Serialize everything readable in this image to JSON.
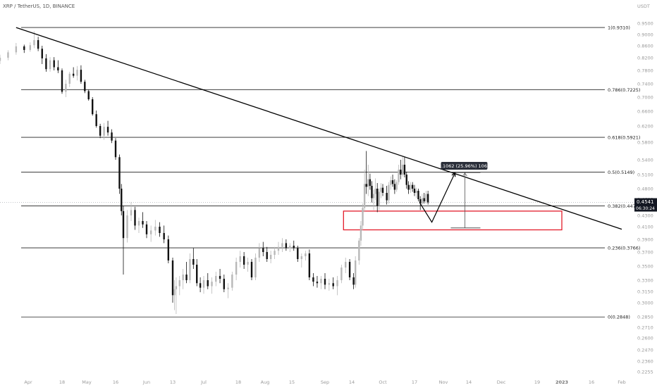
{
  "header": {
    "symbol": "XRP / TetherUS, 1D, BINANCE",
    "unit": "USDT"
  },
  "price_tag": {
    "price": "0.4541",
    "countdown": "06:30:24",
    "color": "#131722"
  },
  "measure_label": "0.1062 (25.96%) 1062",
  "colors": {
    "up": "#b8b8b8",
    "down": "#111111",
    "fib_line": "#222222",
    "trendline": "#000000",
    "zone": "#e31c2a"
  },
  "chart_data": {
    "type": "candlestick",
    "title": "",
    "xlabel": "",
    "ylabel": "",
    "ylim": [
      0.2255,
      0.97
    ],
    "yticks": [
      "0.9500",
      "0.9000",
      "0.8600",
      "0.8200",
      "0.7800",
      "0.7400",
      "0.7000",
      "0.6600",
      "0.6200",
      "0.5800",
      "0.5400",
      "0.5100",
      "0.4800",
      "0.4600",
      "0.4300",
      "0.4100",
      "0.3900",
      "0.3700",
      "0.3500",
      "0.3300",
      "0.3150",
      "0.3000",
      "0.2850",
      "0.2710",
      "0.2600",
      "0.2470",
      "0.2360",
      "0.2255"
    ],
    "xticks": [
      {
        "label": "Apr",
        "date": "2022-04-01"
      },
      {
        "label": "18",
        "date": "2022-04-18"
      },
      {
        "label": "May",
        "date": "2022-05-01"
      },
      {
        "label": "16",
        "date": "2022-05-16"
      },
      {
        "label": "Jun",
        "date": "2022-06-01"
      },
      {
        "label": "13",
        "date": "2022-06-13"
      },
      {
        "label": "Jul",
        "date": "2022-07-01"
      },
      {
        "label": "18",
        "date": "2022-07-18"
      },
      {
        "label": "Aug",
        "date": "2022-08-01"
      },
      {
        "label": "15",
        "date": "2022-08-15"
      },
      {
        "label": "Sep",
        "date": "2022-09-01"
      },
      {
        "label": "14",
        "date": "2022-09-14"
      },
      {
        "label": "Oct",
        "date": "2022-10-01"
      },
      {
        "label": "17",
        "date": "2022-10-17"
      },
      {
        "label": "Nov",
        "date": "2022-11-01"
      },
      {
        "label": "14",
        "date": "2022-11-14"
      },
      {
        "label": "Dec",
        "date": "2022-12-01"
      },
      {
        "label": "19",
        "date": "2022-12-19"
      },
      {
        "label": "2023",
        "date": "2023-01-01"
      },
      {
        "label": "16",
        "date": "2023-01-16"
      },
      {
        "label": "Feb",
        "date": "2023-02-01"
      }
    ],
    "fib_levels": [
      {
        "label": "1(0.9310)",
        "value": 0.931
      },
      {
        "label": "0.786(0.7225)",
        "value": 0.7225
      },
      {
        "label": "0.618(0.5921)",
        "value": 0.5921
      },
      {
        "label": "0.5(0.5149)",
        "value": 0.5149
      },
      {
        "label": "0.382(0.4477)",
        "value": 0.4477
      },
      {
        "label": "0.236(0.3766)",
        "value": 0.3766
      },
      {
        "label": "0(0.2848)",
        "value": 0.2848
      }
    ],
    "trendline": [
      {
        "date": "2022-03-29",
        "value": 0.931
      },
      {
        "date": "2023-02-01",
        "value": 0.406
      }
    ],
    "zone": {
      "from": "2022-09-10",
      "to": "2023-01-01",
      "top": 0.438,
      "bottom": 0.405
    },
    "projection": [
      {
        "date": "2022-10-20",
        "value": 0.452
      },
      {
        "date": "2022-10-26",
        "value": 0.418
      },
      {
        "date": "2022-11-07",
        "value": 0.514
      }
    ],
    "measure": {
      "date": "2022-11-12",
      "from": 0.408,
      "to": 0.5142,
      "change": 0.1062
    },
    "last_price": 0.4541,
    "candles": [
      {
        "d": "2022-03-25",
        "o": 0.81,
        "h": 0.83,
        "l": 0.8,
        "c": 0.82
      },
      {
        "d": "2022-03-27",
        "o": 0.82,
        "h": 0.845,
        "l": 0.812,
        "c": 0.838
      },
      {
        "d": "2022-03-29",
        "o": 0.838,
        "h": 0.87,
        "l": 0.83,
        "c": 0.858
      },
      {
        "d": "2022-03-31",
        "o": 0.858,
        "h": 0.864,
        "l": 0.836,
        "c": 0.846
      },
      {
        "d": "2022-04-02",
        "o": 0.846,
        "h": 0.872,
        "l": 0.84,
        "c": 0.862
      },
      {
        "d": "2022-04-04",
        "o": 0.862,
        "h": 0.914,
        "l": 0.852,
        "c": 0.88
      },
      {
        "d": "2022-04-06",
        "o": 0.88,
        "h": 0.892,
        "l": 0.842,
        "c": 0.85
      },
      {
        "d": "2022-04-08",
        "o": 0.85,
        "h": 0.86,
        "l": 0.8,
        "c": 0.818
      },
      {
        "d": "2022-04-10",
        "o": 0.818,
        "h": 0.832,
        "l": 0.776,
        "c": 0.784
      },
      {
        "d": "2022-04-12",
        "o": 0.784,
        "h": 0.822,
        "l": 0.776,
        "c": 0.812
      },
      {
        "d": "2022-04-14",
        "o": 0.812,
        "h": 0.822,
        "l": 0.78,
        "c": 0.79
      },
      {
        "d": "2022-04-16",
        "o": 0.79,
        "h": 0.812,
        "l": 0.772,
        "c": 0.78
      },
      {
        "d": "2022-04-18",
        "o": 0.78,
        "h": 0.786,
        "l": 0.71,
        "c": 0.716
      },
      {
        "d": "2022-04-20",
        "o": 0.716,
        "h": 0.752,
        "l": 0.7,
        "c": 0.74
      },
      {
        "d": "2022-04-22",
        "o": 0.74,
        "h": 0.776,
        "l": 0.73,
        "c": 0.77
      },
      {
        "d": "2022-04-24",
        "o": 0.77,
        "h": 0.79,
        "l": 0.758,
        "c": 0.764
      },
      {
        "d": "2022-04-26",
        "o": 0.764,
        "h": 0.794,
        "l": 0.75,
        "c": 0.782
      },
      {
        "d": "2022-04-28",
        "o": 0.782,
        "h": 0.796,
        "l": 0.74,
        "c": 0.746
      },
      {
        "d": "2022-04-30",
        "o": 0.746,
        "h": 0.752,
        "l": 0.712,
        "c": 0.718
      },
      {
        "d": "2022-05-02",
        "o": 0.718,
        "h": 0.722,
        "l": 0.69,
        "c": 0.694
      },
      {
        "d": "2022-05-04",
        "o": 0.694,
        "h": 0.7,
        "l": 0.648,
        "c": 0.652
      },
      {
        "d": "2022-05-06",
        "o": 0.652,
        "h": 0.662,
        "l": 0.616,
        "c": 0.62
      },
      {
        "d": "2022-05-08",
        "o": 0.62,
        "h": 0.626,
        "l": 0.59,
        "c": 0.596
      },
      {
        "d": "2022-05-10",
        "o": 0.596,
        "h": 0.628,
        "l": 0.586,
        "c": 0.618
      },
      {
        "d": "2022-05-12",
        "o": 0.618,
        "h": 0.634,
        "l": 0.596,
        "c": 0.604
      },
      {
        "d": "2022-05-14",
        "o": 0.604,
        "h": 0.612,
        "l": 0.578,
        "c": 0.584
      },
      {
        "d": "2022-05-16",
        "o": 0.584,
        "h": 0.59,
        "l": 0.54,
        "c": 0.546
      },
      {
        "d": "2022-05-18",
        "o": 0.546,
        "h": 0.552,
        "l": 0.47,
        "c": 0.48
      },
      {
        "d": "2022-05-19",
        "o": 0.48,
        "h": 0.49,
        "l": 0.43,
        "c": 0.438
      },
      {
        "d": "2022-05-20",
        "o": 0.438,
        "h": 0.448,
        "l": 0.338,
        "c": 0.392
      },
      {
        "d": "2022-05-22",
        "o": 0.392,
        "h": 0.44,
        "l": 0.385,
        "c": 0.43
      },
      {
        "d": "2022-05-24",
        "o": 0.43,
        "h": 0.455,
        "l": 0.42,
        "c": 0.44
      },
      {
        "d": "2022-05-26",
        "o": 0.44,
        "h": 0.446,
        "l": 0.405,
        "c": 0.412
      },
      {
        "d": "2022-05-28",
        "o": 0.412,
        "h": 0.426,
        "l": 0.4,
        "c": 0.42
      },
      {
        "d": "2022-05-30",
        "o": 0.42,
        "h": 0.436,
        "l": 0.408,
        "c": 0.414
      },
      {
        "d": "2022-06-01",
        "o": 0.414,
        "h": 0.42,
        "l": 0.392,
        "c": 0.398
      },
      {
        "d": "2022-06-03",
        "o": 0.398,
        "h": 0.412,
        "l": 0.386,
        "c": 0.404
      },
      {
        "d": "2022-06-05",
        "o": 0.404,
        "h": 0.422,
        "l": 0.396,
        "c": 0.41
      },
      {
        "d": "2022-06-07",
        "o": 0.41,
        "h": 0.418,
        "l": 0.394,
        "c": 0.4
      },
      {
        "d": "2022-06-09",
        "o": 0.4,
        "h": 0.412,
        "l": 0.384,
        "c": 0.39
      },
      {
        "d": "2022-06-11",
        "o": 0.39,
        "h": 0.396,
        "l": 0.354,
        "c": 0.358
      },
      {
        "d": "2022-06-13",
        "o": 0.358,
        "h": 0.362,
        "l": 0.3,
        "c": 0.31
      },
      {
        "d": "2022-06-14",
        "o": 0.31,
        "h": 0.33,
        "l": 0.292,
        "c": 0.318
      },
      {
        "d": "2022-06-15",
        "o": 0.318,
        "h": 0.334,
        "l": 0.288,
        "c": 0.322
      },
      {
        "d": "2022-06-17",
        "o": 0.322,
        "h": 0.336,
        "l": 0.31,
        "c": 0.33
      },
      {
        "d": "2022-06-19",
        "o": 0.33,
        "h": 0.346,
        "l": 0.318,
        "c": 0.338
      },
      {
        "d": "2022-06-21",
        "o": 0.338,
        "h": 0.356,
        "l": 0.326,
        "c": 0.33
      },
      {
        "d": "2022-06-23",
        "o": 0.33,
        "h": 0.368,
        "l": 0.326,
        "c": 0.36
      },
      {
        "d": "2022-06-25",
        "o": 0.36,
        "h": 0.376,
        "l": 0.346,
        "c": 0.352
      },
      {
        "d": "2022-06-27",
        "o": 0.352,
        "h": 0.36,
        "l": 0.322,
        "c": 0.326
      },
      {
        "d": "2022-06-29",
        "o": 0.326,
        "h": 0.334,
        "l": 0.314,
        "c": 0.32
      },
      {
        "d": "2022-07-01",
        "o": 0.32,
        "h": 0.336,
        "l": 0.312,
        "c": 0.33
      },
      {
        "d": "2022-07-03",
        "o": 0.33,
        "h": 0.34,
        "l": 0.318,
        "c": 0.322
      },
      {
        "d": "2022-07-05",
        "o": 0.322,
        "h": 0.334,
        "l": 0.312,
        "c": 0.328
      },
      {
        "d": "2022-07-07",
        "o": 0.328,
        "h": 0.342,
        "l": 0.322,
        "c": 0.336
      },
      {
        "d": "2022-07-09",
        "o": 0.336,
        "h": 0.346,
        "l": 0.326,
        "c": 0.332
      },
      {
        "d": "2022-07-11",
        "o": 0.332,
        "h": 0.338,
        "l": 0.314,
        "c": 0.318
      },
      {
        "d": "2022-07-13",
        "o": 0.318,
        "h": 0.326,
        "l": 0.306,
        "c": 0.32
      },
      {
        "d": "2022-07-15",
        "o": 0.32,
        "h": 0.342,
        "l": 0.316,
        "c": 0.338
      },
      {
        "d": "2022-07-17",
        "o": 0.338,
        "h": 0.362,
        "l": 0.33,
        "c": 0.356
      },
      {
        "d": "2022-07-19",
        "o": 0.356,
        "h": 0.372,
        "l": 0.348,
        "c": 0.364
      },
      {
        "d": "2022-07-21",
        "o": 0.364,
        "h": 0.37,
        "l": 0.346,
        "c": 0.352
      },
      {
        "d": "2022-07-23",
        "o": 0.352,
        "h": 0.362,
        "l": 0.342,
        "c": 0.356
      },
      {
        "d": "2022-07-25",
        "o": 0.356,
        "h": 0.36,
        "l": 0.33,
        "c": 0.334
      },
      {
        "d": "2022-07-27",
        "o": 0.334,
        "h": 0.368,
        "l": 0.33,
        "c": 0.362
      },
      {
        "d": "2022-07-29",
        "o": 0.362,
        "h": 0.384,
        "l": 0.356,
        "c": 0.376
      },
      {
        "d": "2022-07-31",
        "o": 0.376,
        "h": 0.386,
        "l": 0.364,
        "c": 0.37
      },
      {
        "d": "2022-08-02",
        "o": 0.37,
        "h": 0.378,
        "l": 0.356,
        "c": 0.36
      },
      {
        "d": "2022-08-04",
        "o": 0.36,
        "h": 0.372,
        "l": 0.354,
        "c": 0.366
      },
      {
        "d": "2022-08-06",
        "o": 0.366,
        "h": 0.378,
        "l": 0.36,
        "c": 0.372
      },
      {
        "d": "2022-08-08",
        "o": 0.372,
        "h": 0.386,
        "l": 0.366,
        "c": 0.378
      },
      {
        "d": "2022-08-10",
        "o": 0.378,
        "h": 0.392,
        "l": 0.37,
        "c": 0.384
      },
      {
        "d": "2022-08-12",
        "o": 0.384,
        "h": 0.39,
        "l": 0.372,
        "c": 0.376
      },
      {
        "d": "2022-08-14",
        "o": 0.376,
        "h": 0.384,
        "l": 0.37,
        "c": 0.38
      },
      {
        "d": "2022-08-16",
        "o": 0.38,
        "h": 0.388,
        "l": 0.372,
        "c": 0.376
      },
      {
        "d": "2022-08-18",
        "o": 0.376,
        "h": 0.38,
        "l": 0.356,
        "c": 0.36
      },
      {
        "d": "2022-08-20",
        "o": 0.36,
        "h": 0.368,
        "l": 0.348,
        "c": 0.364
      },
      {
        "d": "2022-08-22",
        "o": 0.364,
        "h": 0.372,
        "l": 0.358,
        "c": 0.368
      },
      {
        "d": "2022-08-24",
        "o": 0.368,
        "h": 0.374,
        "l": 0.33,
        "c": 0.334
      },
      {
        "d": "2022-08-26",
        "o": 0.334,
        "h": 0.34,
        "l": 0.322,
        "c": 0.328
      },
      {
        "d": "2022-08-28",
        "o": 0.328,
        "h": 0.336,
        "l": 0.32,
        "c": 0.326
      },
      {
        "d": "2022-08-30",
        "o": 0.326,
        "h": 0.336,
        "l": 0.318,
        "c": 0.332
      },
      {
        "d": "2022-09-01",
        "o": 0.332,
        "h": 0.34,
        "l": 0.318,
        "c": 0.324
      },
      {
        "d": "2022-09-03",
        "o": 0.324,
        "h": 0.332,
        "l": 0.316,
        "c": 0.326
      },
      {
        "d": "2022-09-05",
        "o": 0.326,
        "h": 0.334,
        "l": 0.318,
        "c": 0.322
      },
      {
        "d": "2022-09-07",
        "o": 0.322,
        "h": 0.336,
        "l": 0.31,
        "c": 0.33
      },
      {
        "d": "2022-09-09",
        "o": 0.33,
        "h": 0.352,
        "l": 0.326,
        "c": 0.348
      },
      {
        "d": "2022-09-11",
        "o": 0.348,
        "h": 0.362,
        "l": 0.34,
        "c": 0.356
      },
      {
        "d": "2022-09-13",
        "o": 0.356,
        "h": 0.36,
        "l": 0.33,
        "c": 0.334
      },
      {
        "d": "2022-09-15",
        "o": 0.334,
        "h": 0.34,
        "l": 0.318,
        "c": 0.324
      },
      {
        "d": "2022-09-16",
        "o": 0.324,
        "h": 0.364,
        "l": 0.32,
        "c": 0.358
      },
      {
        "d": "2022-09-18",
        "o": 0.358,
        "h": 0.392,
        "l": 0.352,
        "c": 0.388
      },
      {
        "d": "2022-09-19",
        "o": 0.388,
        "h": 0.42,
        "l": 0.38,
        "c": 0.412
      },
      {
        "d": "2022-09-20",
        "o": 0.412,
        "h": 0.452,
        "l": 0.404,
        "c": 0.444
      },
      {
        "d": "2022-09-21",
        "o": 0.444,
        "h": 0.52,
        "l": 0.436,
        "c": 0.49
      },
      {
        "d": "2022-09-22",
        "o": 0.49,
        "h": 0.56,
        "l": 0.47,
        "c": 0.484
      },
      {
        "d": "2022-09-23",
        "o": 0.484,
        "h": 0.53,
        "l": 0.466,
        "c": 0.5
      },
      {
        "d": "2022-09-24",
        "o": 0.5,
        "h": 0.512,
        "l": 0.478,
        "c": 0.486
      },
      {
        "d": "2022-09-25",
        "o": 0.486,
        "h": 0.496,
        "l": 0.454,
        "c": 0.462
      },
      {
        "d": "2022-09-26",
        "o": 0.462,
        "h": 0.478,
        "l": 0.44,
        "c": 0.47
      },
      {
        "d": "2022-09-27",
        "o": 0.47,
        "h": 0.502,
        "l": 0.458,
        "c": 0.48
      },
      {
        "d": "2022-09-28",
        "o": 0.48,
        "h": 0.492,
        "l": 0.436,
        "c": 0.448
      },
      {
        "d": "2022-09-29",
        "o": 0.448,
        "h": 0.48,
        "l": 0.44,
        "c": 0.474
      },
      {
        "d": "2022-09-30",
        "o": 0.474,
        "h": 0.492,
        "l": 0.462,
        "c": 0.482
      },
      {
        "d": "2022-10-01",
        "o": 0.482,
        "h": 0.49,
        "l": 0.466,
        "c": 0.472
      },
      {
        "d": "2022-10-03",
        "o": 0.472,
        "h": 0.486,
        "l": 0.45,
        "c": 0.458
      },
      {
        "d": "2022-10-04",
        "o": 0.458,
        "h": 0.494,
        "l": 0.452,
        "c": 0.488
      },
      {
        "d": "2022-10-05",
        "o": 0.488,
        "h": 0.506,
        "l": 0.478,
        "c": 0.498
      },
      {
        "d": "2022-10-06",
        "o": 0.498,
        "h": 0.51,
        "l": 0.484,
        "c": 0.49
      },
      {
        "d": "2022-10-07",
        "o": 0.49,
        "h": 0.5,
        "l": 0.47,
        "c": 0.478
      },
      {
        "d": "2022-10-08",
        "o": 0.478,
        "h": 0.498,
        "l": 0.474,
        "c": 0.494
      },
      {
        "d": "2022-10-09",
        "o": 0.494,
        "h": 0.53,
        "l": 0.488,
        "c": 0.52
      },
      {
        "d": "2022-10-10",
        "o": 0.52,
        "h": 0.54,
        "l": 0.5,
        "c": 0.51
      },
      {
        "d": "2022-10-11",
        "o": 0.51,
        "h": 0.548,
        "l": 0.506,
        "c": 0.53
      },
      {
        "d": "2022-10-12",
        "o": 0.53,
        "h": 0.546,
        "l": 0.504,
        "c": 0.51
      },
      {
        "d": "2022-10-13",
        "o": 0.51,
        "h": 0.516,
        "l": 0.48,
        "c": 0.488
      },
      {
        "d": "2022-10-14",
        "o": 0.488,
        "h": 0.496,
        "l": 0.47,
        "c": 0.478
      },
      {
        "d": "2022-10-15",
        "o": 0.478,
        "h": 0.494,
        "l": 0.472,
        "c": 0.488
      },
      {
        "d": "2022-10-16",
        "o": 0.488,
        "h": 0.494,
        "l": 0.474,
        "c": 0.48
      },
      {
        "d": "2022-10-17",
        "o": 0.48,
        "h": 0.488,
        "l": 0.466,
        "c": 0.472
      },
      {
        "d": "2022-10-18",
        "o": 0.472,
        "h": 0.482,
        "l": 0.462,
        "c": 0.476
      },
      {
        "d": "2022-10-19",
        "o": 0.476,
        "h": 0.48,
        "l": 0.456,
        "c": 0.46
      },
      {
        "d": "2022-10-20",
        "o": 0.46,
        "h": 0.466,
        "l": 0.44,
        "c": 0.452
      },
      {
        "d": "2022-10-21",
        "o": 0.452,
        "h": 0.47,
        "l": 0.446,
        "c": 0.462
      },
      {
        "d": "2022-10-22",
        "o": 0.462,
        "h": 0.472,
        "l": 0.452,
        "c": 0.456
      },
      {
        "d": "2022-10-23",
        "o": 0.456,
        "h": 0.476,
        "l": 0.452,
        "c": 0.47
      },
      {
        "d": "2022-10-24",
        "o": 0.47,
        "h": 0.476,
        "l": 0.45,
        "c": 0.454
      }
    ]
  }
}
